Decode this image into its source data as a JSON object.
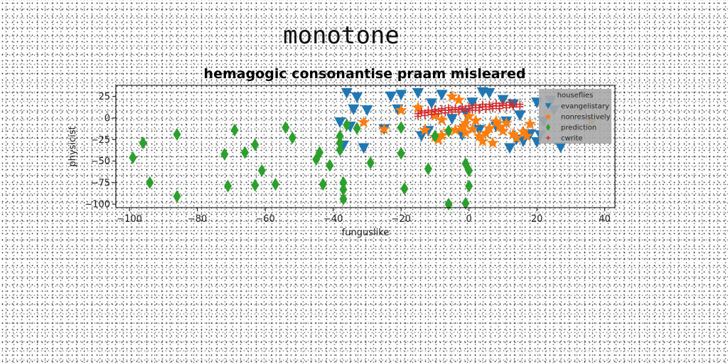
{
  "figure_title": "monotone",
  "chart_data": {
    "type": "scatter",
    "title": "hemagogic consonantise praam misleared",
    "xlabel": "funguslike",
    "ylabel": "physicist",
    "xlim": [
      -104,
      43
    ],
    "ylim": [
      -104,
      38
    ],
    "xticks": [
      -100,
      -80,
      -60,
      -40,
      -20,
      0,
      20,
      40
    ],
    "yticks": [
      25,
      0,
      -25,
      -50,
      -75,
      -100
    ],
    "xtick_labels": [
      "−100",
      "−80",
      "−60",
      "−40",
      "−20",
      "0",
      "20",
      "40"
    ],
    "ytick_labels": [
      "25",
      "0",
      "−25",
      "−50",
      "−75",
      "−100"
    ],
    "grid": false,
    "legend": {
      "title": "houseflies",
      "placement": "top-right",
      "background": "#a9a9a9"
    },
    "series": [
      {
        "name": "evangelistary",
        "marker": "triangle-down",
        "color": "#1f77b4",
        "points": [
          [
            -36,
            29
          ],
          [
            -33,
            24
          ],
          [
            -30,
            9
          ],
          [
            -34,
            10
          ],
          [
            -38,
            -5
          ],
          [
            -35,
            -10
          ],
          [
            -23,
            25
          ],
          [
            -20,
            27
          ],
          [
            -15,
            29
          ],
          [
            -8,
            27
          ],
          [
            -11,
            17
          ],
          [
            -14,
            -21
          ],
          [
            -21,
            10
          ],
          [
            -12,
            -15
          ],
          [
            -25,
            -13
          ],
          [
            -31,
            -35
          ],
          [
            -37,
            -32
          ],
          [
            4,
            30
          ],
          [
            6,
            29
          ],
          [
            1,
            18
          ],
          [
            -2,
            -20
          ],
          [
            -5,
            -1
          ],
          [
            10,
            21
          ],
          [
            13,
            16
          ],
          [
            15,
            3
          ],
          [
            11,
            -4
          ],
          [
            12,
            -35
          ],
          [
            14,
            -25
          ],
          [
            16,
            -27
          ],
          [
            18,
            -19
          ],
          [
            20,
            -28
          ],
          [
            21,
            -20
          ],
          [
            22,
            -4
          ],
          [
            -1,
            6
          ],
          [
            3,
            -14
          ],
          [
            8,
            -10
          ],
          [
            20,
            18
          ],
          [
            24,
            20
          ],
          [
            25,
            9
          ],
          [
            27,
            -34
          ]
        ]
      },
      {
        "name": "nonresistively",
        "marker": "star",
        "color": "#ff7f0e",
        "points": [
          [
            -5,
            25
          ],
          [
            -3,
            21
          ],
          [
            -15,
            12
          ],
          [
            -10,
            3
          ],
          [
            -8,
            -2
          ],
          [
            -13,
            -14
          ],
          [
            -20,
            9
          ],
          [
            -31,
            -5
          ],
          [
            -25,
            -13
          ],
          [
            -8,
            -20
          ],
          [
            -10,
            -22
          ],
          [
            -9,
            -25
          ],
          [
            -6,
            -15
          ],
          [
            -4,
            -14
          ],
          [
            -2,
            -11
          ],
          [
            -1,
            -17
          ],
          [
            1,
            -13
          ],
          [
            3,
            -21
          ],
          [
            4,
            -27
          ],
          [
            7,
            -29
          ],
          [
            8,
            -4
          ],
          [
            9,
            -10
          ],
          [
            11,
            -6
          ],
          [
            13,
            -19
          ],
          [
            14,
            -23
          ],
          [
            16,
            -16
          ],
          [
            17,
            -21
          ],
          [
            18,
            -7
          ],
          [
            5,
            -18
          ],
          [
            2,
            -3
          ],
          [
            -1,
            -6
          ],
          [
            0,
            2
          ],
          [
            6,
            -12
          ],
          [
            10,
            -15
          ],
          [
            36,
            -4
          ]
        ]
      },
      {
        "name": "prediction",
        "marker": "thin-diamond",
        "color": "#2ca02c",
        "points": [
          [
            -99,
            -46
          ],
          [
            -96,
            -29
          ],
          [
            -94,
            -75
          ],
          [
            -86,
            -19
          ],
          [
            -86,
            -91
          ],
          [
            -72,
            -42
          ],
          [
            -71,
            -79
          ],
          [
            -69,
            -14
          ],
          [
            -66,
            -40
          ],
          [
            -63,
            -31
          ],
          [
            -63,
            -78
          ],
          [
            -61,
            -61
          ],
          [
            -57,
            -77
          ],
          [
            -54,
            -11
          ],
          [
            -52,
            -23
          ],
          [
            -45,
            -48
          ],
          [
            -44,
            -40
          ],
          [
            -43,
            -77
          ],
          [
            -41,
            -55
          ],
          [
            -38,
            -21
          ],
          [
            -38,
            -29
          ],
          [
            -38,
            -37
          ],
          [
            -37,
            -75
          ],
          [
            -37,
            -83
          ],
          [
            -37,
            -94
          ],
          [
            -36,
            -8
          ],
          [
            -33,
            -12
          ],
          [
            -29,
            -52
          ],
          [
            -20,
            -11
          ],
          [
            -20,
            -41
          ],
          [
            -19,
            -82
          ],
          [
            -12,
            -59
          ],
          [
            -10,
            -21
          ],
          [
            -6,
            -15
          ],
          [
            -6,
            -100
          ],
          [
            -1,
            -99
          ],
          [
            -1,
            -53
          ],
          [
            0,
            -61
          ],
          [
            0,
            -79
          ]
        ]
      },
      {
        "name": "cwrite",
        "marker": "plus",
        "color": "#d62728",
        "points": [
          [
            -15,
            5
          ],
          [
            -14,
            6
          ],
          [
            -13,
            6
          ],
          [
            -12,
            7
          ],
          [
            -11,
            7
          ],
          [
            -10,
            8
          ],
          [
            -9,
            8
          ],
          [
            -8,
            9
          ],
          [
            -7,
            9
          ],
          [
            -6,
            9
          ],
          [
            -5,
            10
          ],
          [
            -4,
            10
          ],
          [
            -3,
            10
          ],
          [
            -2,
            11
          ],
          [
            -1,
            11
          ],
          [
            0,
            11
          ],
          [
            1,
            12
          ],
          [
            2,
            12
          ],
          [
            3,
            12
          ],
          [
            4,
            13
          ],
          [
            5,
            13
          ],
          [
            6,
            13
          ],
          [
            7,
            14
          ],
          [
            8,
            14
          ],
          [
            9,
            14
          ],
          [
            10,
            15
          ],
          [
            11,
            15
          ],
          [
            12,
            15
          ],
          [
            13,
            16
          ],
          [
            14,
            16
          ],
          [
            15,
            16
          ],
          [
            -14,
            8
          ],
          [
            -12,
            9
          ],
          [
            -10,
            10
          ],
          [
            -8,
            11
          ],
          [
            -6,
            12
          ],
          [
            -4,
            12
          ],
          [
            -2,
            13
          ],
          [
            0,
            14
          ],
          [
            2,
            15
          ],
          [
            4,
            16
          ],
          [
            6,
            16
          ],
          [
            8,
            17
          ],
          [
            10,
            17
          ],
          [
            12,
            18
          ],
          [
            -15,
            2
          ],
          [
            -13,
            3
          ],
          [
            -11,
            4
          ],
          [
            -9,
            5
          ],
          [
            -7,
            6
          ],
          [
            -5,
            7
          ],
          [
            -3,
            7
          ],
          [
            -1,
            8
          ],
          [
            1,
            9
          ],
          [
            3,
            9
          ],
          [
            5,
            10
          ],
          [
            7,
            11
          ],
          [
            9,
            11
          ],
          [
            11,
            12
          ],
          [
            13,
            13
          ],
          [
            15,
            13
          ]
        ]
      }
    ]
  }
}
